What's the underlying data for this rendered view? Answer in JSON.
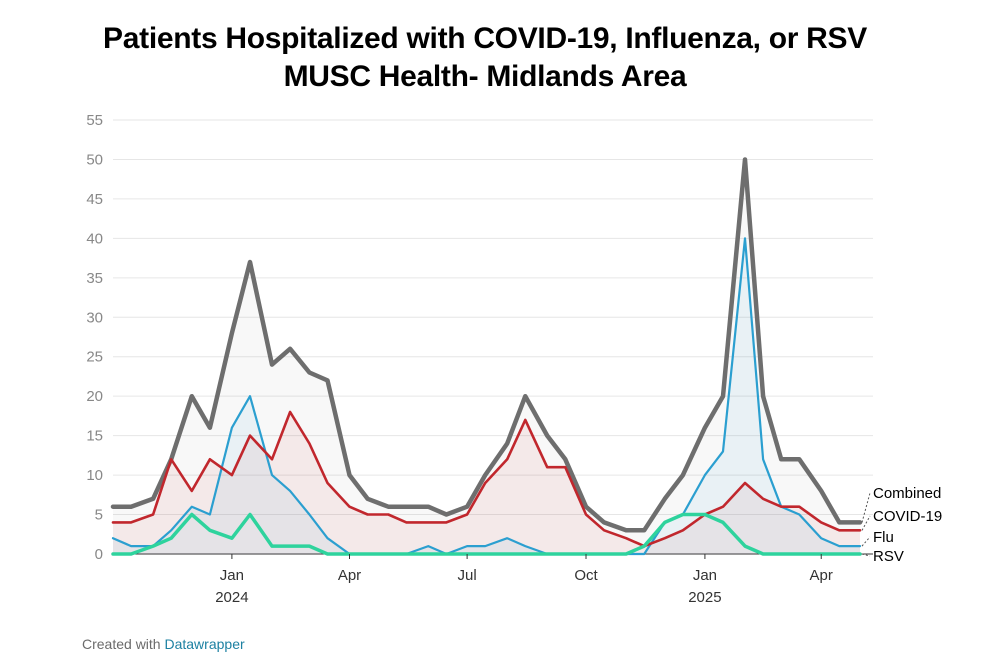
{
  "header": {
    "title": "Patients Hospitalized with COVID-19, Influenza, or RSV",
    "subtitle": "MUSC Health- Midlands Area"
  },
  "footer": {
    "prefix": "Created with",
    "link": "Datawrapper"
  },
  "colors": {
    "combined": "#6e6e6e",
    "covid": "#c1272d",
    "flu": "#2b9fd0",
    "rsv": "#2ed39d",
    "grid": "#e6e6e6",
    "tick": "#888888"
  },
  "chart_data": {
    "type": "line",
    "xlabel": "",
    "ylabel": "",
    "ylim": [
      0,
      55
    ],
    "yticks": [
      0,
      5,
      10,
      15,
      20,
      25,
      30,
      35,
      40,
      45,
      50,
      55
    ],
    "xticks": [
      {
        "label": "Jan",
        "year": "2024",
        "date": "2024-01-01"
      },
      {
        "label": "Apr",
        "year": "",
        "date": "2024-04-01"
      },
      {
        "label": "Jul",
        "year": "",
        "date": "2024-07-01"
      },
      {
        "label": "Oct",
        "year": "",
        "date": "2024-10-01"
      },
      {
        "label": "Jan",
        "year": "2025",
        "date": "2025-01-01"
      },
      {
        "label": "Apr",
        "year": "",
        "date": "2025-04-01"
      }
    ],
    "x": [
      "2023-10-01",
      "2023-10-15",
      "2023-11-01",
      "2023-11-15",
      "2023-12-01",
      "2023-12-15",
      "2024-01-01",
      "2024-01-15",
      "2024-02-01",
      "2024-02-15",
      "2024-03-01",
      "2024-03-15",
      "2024-04-01",
      "2024-04-15",
      "2024-05-01",
      "2024-05-15",
      "2024-06-01",
      "2024-06-15",
      "2024-07-01",
      "2024-07-15",
      "2024-08-01",
      "2024-08-15",
      "2024-09-01",
      "2024-09-15",
      "2024-10-01",
      "2024-10-15",
      "2024-11-01",
      "2024-11-15",
      "2024-12-01",
      "2024-12-15",
      "2025-01-01",
      "2025-01-15",
      "2025-02-01",
      "2025-02-15",
      "2025-03-01",
      "2025-03-15",
      "2025-04-01",
      "2025-04-15",
      "2025-05-01"
    ],
    "series": [
      {
        "name": "Combined",
        "color": "#6e6e6e",
        "values": [
          6,
          6,
          7,
          12,
          20,
          16,
          28,
          37,
          24,
          26,
          23,
          22,
          10,
          7,
          6,
          6,
          6,
          5,
          6,
          10,
          14,
          20,
          15,
          12,
          6,
          4,
          3,
          3,
          7,
          10,
          16,
          20,
          50,
          20,
          12,
          12,
          8,
          4,
          4
        ]
      },
      {
        "name": "COVID-19",
        "color": "#c1272d",
        "values": [
          4,
          4,
          5,
          12,
          8,
          12,
          10,
          15,
          12,
          18,
          14,
          9,
          6,
          5,
          5,
          4,
          4,
          4,
          5,
          9,
          12,
          17,
          11,
          11,
          5,
          3,
          2,
          1,
          2,
          3,
          5,
          6,
          9,
          7,
          6,
          6,
          4,
          3,
          3
        ]
      },
      {
        "name": "Flu",
        "color": "#2b9fd0",
        "values": [
          2,
          1,
          1,
          3,
          6,
          5,
          16,
          20,
          10,
          8,
          5,
          2,
          0,
          0,
          0,
          0,
          1,
          0,
          1,
          1,
          2,
          1,
          0,
          0,
          0,
          0,
          0,
          0,
          4,
          5,
          10,
          13,
          40,
          12,
          6,
          5,
          2,
          1,
          1
        ]
      },
      {
        "name": "RSV",
        "color": "#2ed39d",
        "values": [
          0,
          0,
          1,
          2,
          5,
          3,
          2,
          5,
          1,
          1,
          1,
          0,
          0,
          0,
          0,
          0,
          0,
          0,
          0,
          0,
          0,
          0,
          0,
          0,
          0,
          0,
          0,
          1,
          4,
          5,
          5,
          4,
          1,
          0,
          0,
          0,
          0,
          0,
          0
        ]
      }
    ],
    "legend_placement": "right, end of lines",
    "grid": true
  }
}
